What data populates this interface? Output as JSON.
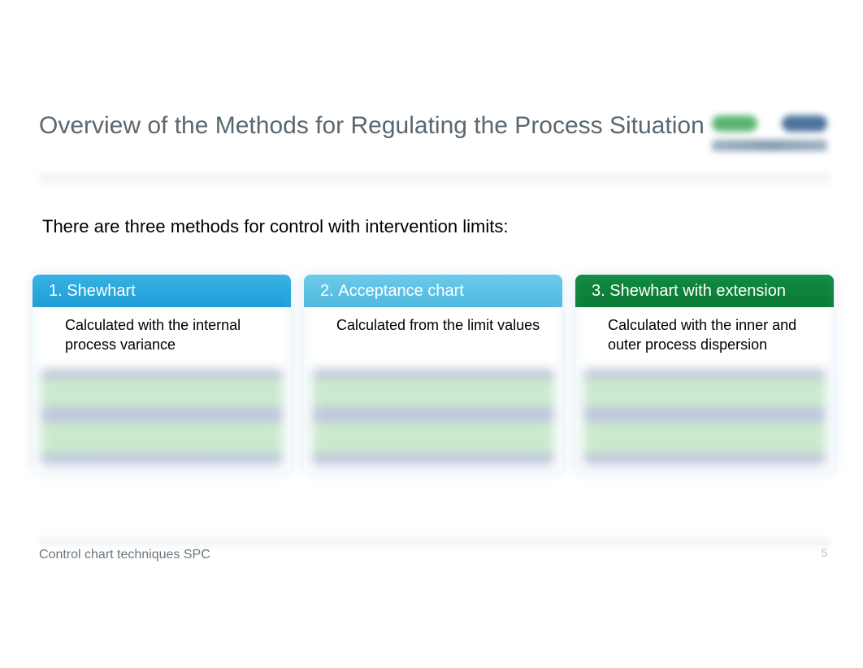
{
  "title": "Overview of the Methods for Regulating the Process Situation",
  "intro": "There are three methods for control with intervention limits:",
  "cards": [
    {
      "num": "1.",
      "label": "Shewhart",
      "desc": "Calculated with the internal process variance",
      "head_bg": "linear-gradient(180deg,#37b1e4 0%,#1f9ed6 100%)",
      "head_color": "#ffffff"
    },
    {
      "num": "2.",
      "label": "Acceptance chart",
      "desc": "Calculated from the limit values",
      "head_bg": "linear-gradient(180deg,#6ccaea 0%,#4fb9de 100%)",
      "head_color": "#ffffff"
    },
    {
      "num": "3.",
      "label": "Shewhart with extension",
      "desc": "Calculated with the inner and outer process dispersion",
      "head_bg": "linear-gradient(180deg,#0f8a3e 0%,#0c7a36 100%)",
      "head_color": "#ffffff"
    }
  ],
  "footer": {
    "left": "Control chart techniques SPC",
    "page": "5"
  },
  "colors": {
    "title": "#5a6770",
    "text": "#000000",
    "footer": "#6b757d",
    "page_num": "#b7bdc3",
    "blur_band_purple": "#b7c0d8",
    "blur_band_green": "#c6e7c9",
    "logo_green": "#3fa85b",
    "logo_blue": "#2c5a8c"
  },
  "typography": {
    "title_fontsize": 30,
    "intro_fontsize": 22,
    "card_head_fontsize": 20,
    "card_desc_fontsize": 18,
    "footer_fontsize": 16
  },
  "layout": {
    "slide_w": 1062,
    "slide_h": 822,
    "card_count": 3
  }
}
